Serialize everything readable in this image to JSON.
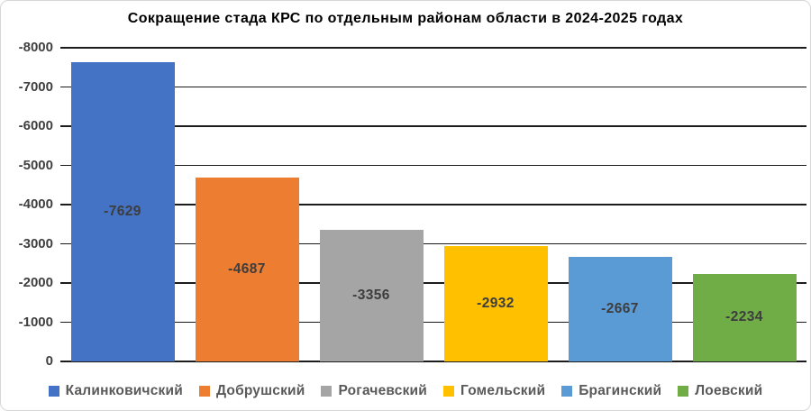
{
  "title": "Сокращение стада КРС по отдельным районам области в 2024-2025 годах",
  "chart_data": {
    "type": "bar",
    "title": "Сокращение стада КРС по отдельным районам области в 2024-2025 годах",
    "categories": [
      "Калинковичский",
      "Добрушский",
      "Рогачевский",
      "Гомельский",
      "Брагинский",
      "Лоевский"
    ],
    "values": [
      -7629,
      -4687,
      -3356,
      -2932,
      -2667,
      -2234
    ],
    "data_labels": [
      "-7629",
      "-4687",
      "-3356",
      "-2932",
      "-2667",
      "-2234"
    ],
    "bar_colors": [
      "#4472C4",
      "#ED7D31",
      "#A5A5A5",
      "#FFC000",
      "#5B9BD5",
      "#70AD47"
    ],
    "y_axis": {
      "tick_labels_top_to_bottom": [
        "-8000",
        "-7000",
        "-6000",
        "-5000",
        "-4000",
        "-3000",
        "-2000",
        "-1000",
        "0"
      ],
      "top_value": -8000,
      "bottom_value": 0,
      "step": 1000,
      "orientation": "zero at bottom, negative values extend upward"
    },
    "grid": true,
    "legend_position": "bottom",
    "legend": [
      {
        "label": "Калинковичский",
        "color": "#4472C4"
      },
      {
        "label": "Добрушский",
        "color": "#ED7D31"
      },
      {
        "label": "Рогачевский",
        "color": "#A5A5A5"
      },
      {
        "label": "Гомельский",
        "color": "#FFC000"
      },
      {
        "label": "Брагинский",
        "color": "#5B9BD5"
      },
      {
        "label": "Лоевский",
        "color": "#70AD47"
      }
    ]
  },
  "style_colors": {
    "title_color": "#000000",
    "tick_label_color": "#404040",
    "bar_label_color": "#3d3d3d",
    "legend_text_color": "#595959",
    "gridline_color": "#1c1c1c",
    "canvas_border_color": "#d6d6d6",
    "background_color": "#ffffff"
  }
}
